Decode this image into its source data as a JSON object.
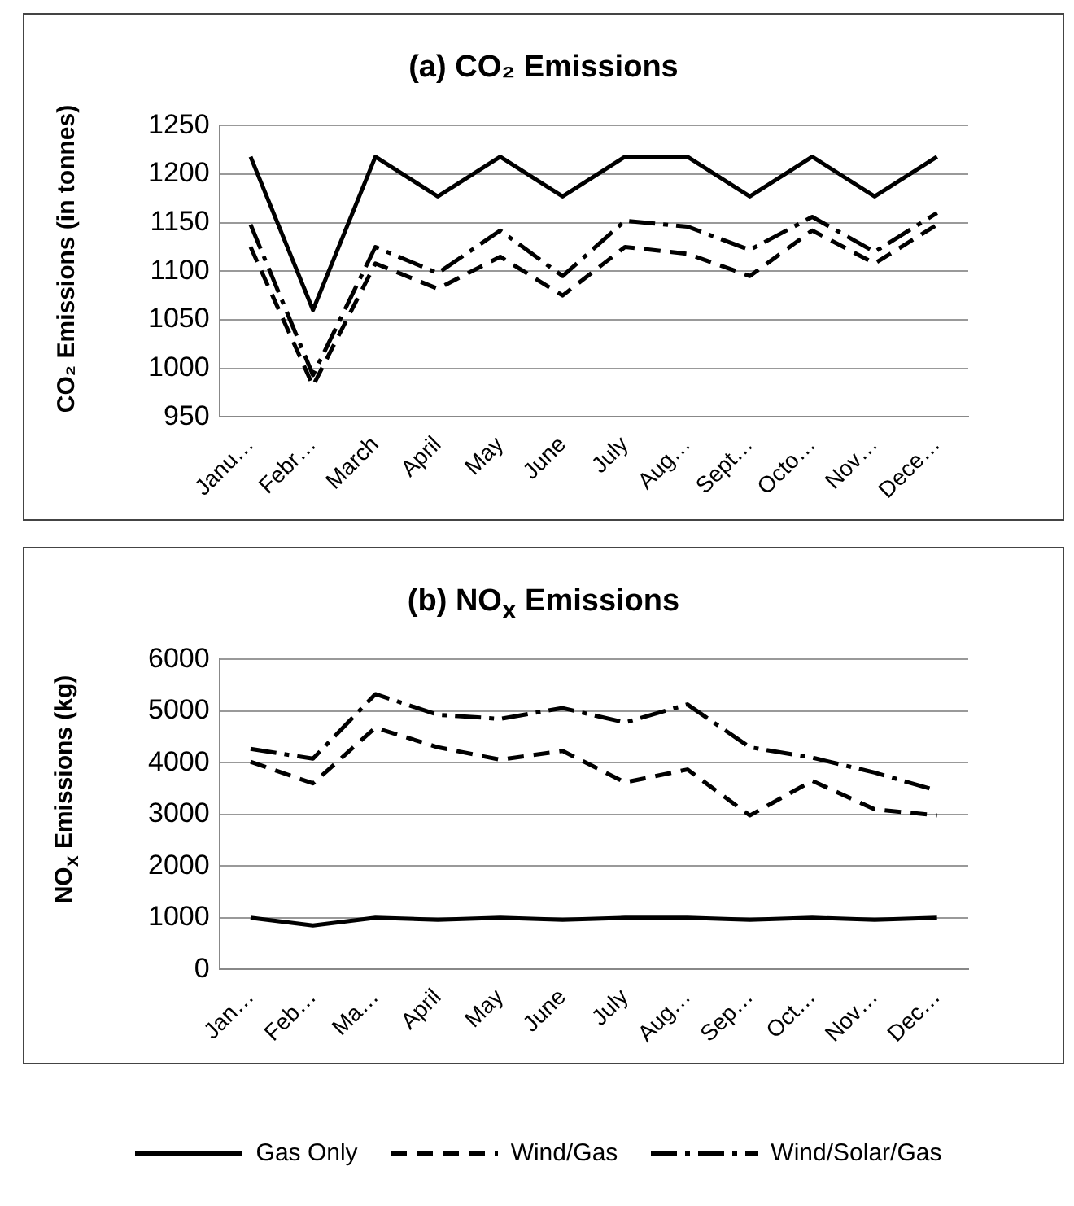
{
  "chart_data": [
    {
      "type": "line",
      "title": "(a) CO₂ Emissions",
      "ylabel": "CO₂ Emissions (in tonnes)",
      "categories": [
        "Janu…",
        "Febr…",
        "March",
        "April",
        "May",
        "June",
        "July",
        "Aug…",
        "Sept…",
        "Octo…",
        "Nov…",
        "Dece…"
      ],
      "ylim": [
        950,
        1250
      ],
      "yticks": [
        950,
        1000,
        1050,
        1100,
        1150,
        1200,
        1250
      ],
      "grid": "y",
      "legend": "bottom",
      "marker": "none",
      "series": [
        {
          "name": "Gas Only",
          "color": "#000000",
          "line_style": "solid",
          "values": [
            1218,
            1060,
            1218,
            1177,
            1218,
            1177,
            1218,
            1218,
            1177,
            1218,
            1177,
            1218
          ]
        },
        {
          "name": "Wind/Gas",
          "color": "#000000",
          "line_style": "dashed",
          "values": [
            1125,
            982,
            1108,
            1082,
            1115,
            1075,
            1125,
            1118,
            1095,
            1142,
            1108,
            1148
          ]
        },
        {
          "name": "Wind/Solar/Gas",
          "color": "#000000",
          "line_style": "dashdot",
          "values": [
            1148,
            993,
            1125,
            1098,
            1142,
            1095,
            1152,
            1146,
            1122,
            1156,
            1120,
            1160
          ]
        }
      ]
    },
    {
      "type": "line",
      "title": "(b) NO$_{x}$ Emissions",
      "ylabel": "NO$_{x}$ Emissions (kg)",
      "categories": [
        "Jan…",
        "Feb…",
        "Ma…",
        "April",
        "May",
        "June",
        "July",
        "Aug…",
        "Sep…",
        "Oct…",
        "Nov…",
        "Dec…"
      ],
      "ylim": [
        0,
        6000
      ],
      "yticks": [
        0,
        1000,
        2000,
        3000,
        4000,
        5000,
        6000
      ],
      "grid": "y",
      "legend": "bottom",
      "marker": "none",
      "series": [
        {
          "name": "Gas Only",
          "color": "#000000",
          "line_style": "solid",
          "values": [
            1000,
            850,
            1000,
            960,
            1000,
            960,
            1000,
            1000,
            960,
            1000,
            960,
            1000
          ]
        },
        {
          "name": "Wind/Gas",
          "color": "#000000",
          "line_style": "dashed",
          "values": [
            4020,
            3600,
            4680,
            4300,
            4060,
            4230,
            3620,
            3870,
            2980,
            3650,
            3100,
            2980
          ]
        },
        {
          "name": "Wind/Solar/Gas",
          "color": "#000000",
          "line_style": "dashdot",
          "values": [
            4270,
            4080,
            5330,
            4930,
            4850,
            5060,
            4780,
            5130,
            4300,
            4100,
            3810,
            3460
          ]
        }
      ]
    }
  ]
}
